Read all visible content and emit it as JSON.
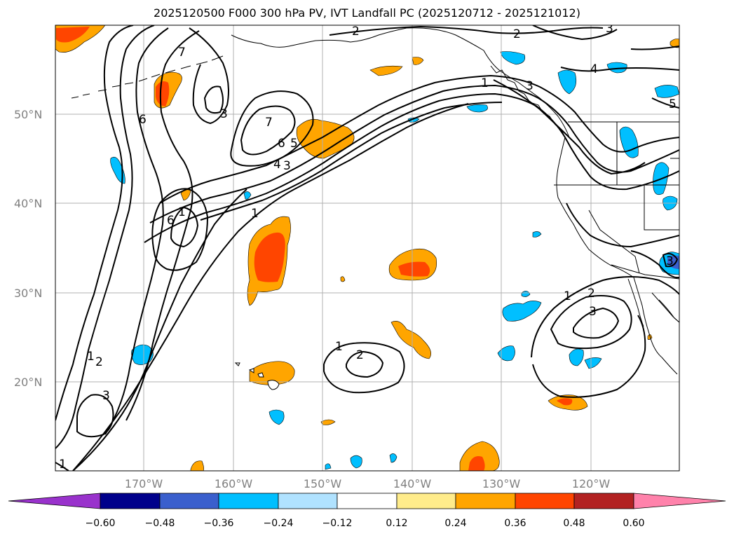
{
  "title": "2025120500 F000 300 hPa PV, IVT Landfall PC (2025120712 - 2025121012)",
  "map": {
    "lat_labels": [
      "50°N",
      "40°N",
      "30°N",
      "20°N"
    ],
    "lon_labels": [
      "170°W",
      "160°W",
      "150°W",
      "140°W",
      "130°W",
      "120°W"
    ],
    "contour_labels": [
      {
        "text": "7",
        "label": "pv-7-north"
      },
      {
        "text": "6",
        "label": "pv-6-west"
      },
      {
        "text": "3",
        "label": "pv-3-gulf"
      },
      {
        "text": "2",
        "label": "pv-2-north-a"
      },
      {
        "text": "2",
        "label": "pv-2-north-b"
      },
      {
        "text": "3",
        "label": "pv-3-top"
      },
      {
        "text": "4",
        "label": "pv-4-bc"
      },
      {
        "text": "5",
        "label": "pv-5-east"
      },
      {
        "text": "3",
        "label": "pv-3-coast"
      },
      {
        "text": "1",
        "label": "pv-1-coast"
      },
      {
        "text": "7",
        "label": "pv-7-center"
      },
      {
        "text": "6",
        "label": "pv-6-center"
      },
      {
        "text": "5",
        "label": "pv-5-center"
      },
      {
        "text": "4",
        "label": "pv-4-center"
      },
      {
        "text": "3",
        "label": "pv-3-center"
      },
      {
        "text": "1",
        "label": "pv-1-center"
      },
      {
        "text": "6",
        "label": "pv-6-cutoff"
      },
      {
        "text": "1",
        "label": "pv-1-cutoff"
      },
      {
        "text": "1",
        "label": "pv-1-trough"
      },
      {
        "text": "2",
        "label": "pv-2-trough"
      },
      {
        "text": "3",
        "label": "pv-3-south"
      },
      {
        "text": "1",
        "label": "pv-1-south"
      },
      {
        "text": "1",
        "label": "pv-1-hawaii"
      },
      {
        "text": "2",
        "label": "pv-2-hawaii"
      },
      {
        "text": "1",
        "label": "pv-1-baja"
      },
      {
        "text": "2",
        "label": "pv-2-baja"
      },
      {
        "text": "3",
        "label": "pv-3-baja"
      },
      {
        "text": "3",
        "label": "pv-3-socal"
      }
    ]
  },
  "colorbar": {
    "ticks": [
      "−0.60",
      "−0.48",
      "−0.36",
      "−0.24",
      "−0.12",
      "0.12",
      "0.24",
      "0.36",
      "0.48",
      "0.60"
    ],
    "colors": [
      "#9932cc",
      "#00008b",
      "#3a5fcd",
      "#00bfff",
      "#b0e2ff",
      "#ffffff",
      "#ffec8b",
      "#ffa500",
      "#ff4500",
      "#b22222",
      "#ff82ab"
    ]
  }
}
